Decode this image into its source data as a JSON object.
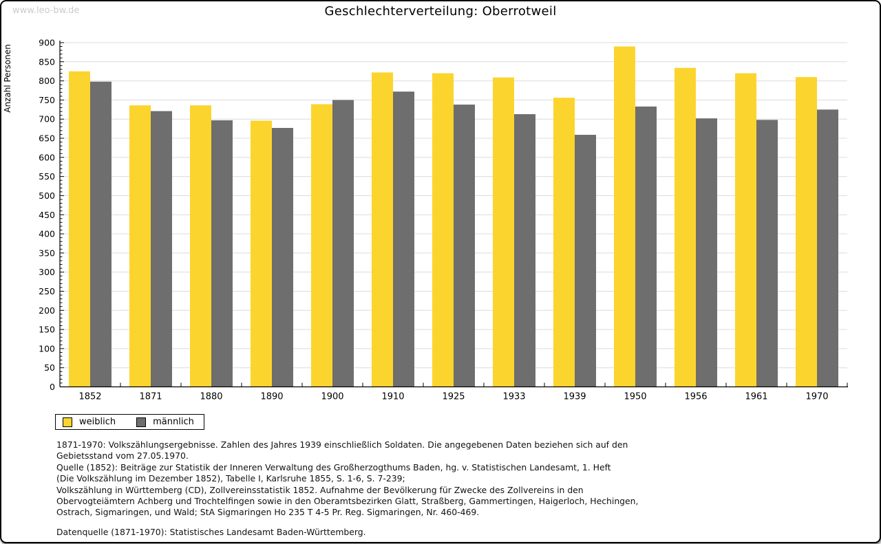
{
  "watermark": "www.leo-bw.de",
  "title": "Geschlechterverteilung: Oberrotweil",
  "colors": {
    "female": "#fcd42e",
    "male": "#6e6e6e",
    "grid": "#dcdcdc",
    "axis": "#000000",
    "watermark": "#cbcbcb"
  },
  "chart_data": {
    "type": "bar",
    "title": "Geschlechterverteilung: Oberrotweil",
    "xlabel": "",
    "ylabel": "Anzahl Personen",
    "ylim": [
      0,
      900
    ],
    "ytick_step": 50,
    "minor_tick_step": 10,
    "grid": true,
    "legend_position": "bottom-left",
    "categories": [
      "1852",
      "1871",
      "1880",
      "1890",
      "1900",
      "1910",
      "1925",
      "1933",
      "1939",
      "1950",
      "1956",
      "1961",
      "1970"
    ],
    "series": [
      {
        "name": "weiblich",
        "color": "#fcd42e",
        "values": [
          825,
          736,
          736,
          696,
          739,
          822,
          820,
          809,
          756,
          890,
          834,
          820,
          810
        ]
      },
      {
        "name": "männlich",
        "color": "#6e6e6e",
        "values": [
          798,
          721,
          697,
          677,
          750,
          772,
          738,
          713,
          659,
          733,
          702,
          698,
          725
        ]
      }
    ]
  },
  "footnotes": {
    "lines": [
      "1871-1970: Volkszählungsergebnisse. Zahlen des Jahres 1939 einschließlich Soldaten. Die angegebenen Daten beziehen sich auf den",
      "Gebietsstand vom 27.05.1970.",
      "Quelle (1852): Beiträge zur Statistik der Inneren Verwaltung des Großherzogthums Baden, hg. v. Statistischen Landesamt, 1. Heft",
      "(Die Volkszählung im Dezember 1852), Tabelle I, Karlsruhe 1855, S. 1-6, S. 7-239;",
      "Volkszählung in Württemberg (CD), Zollvereinsstatistik 1852. Aufnahme der Bevölkerung für Zwecke des Zollvereins in den",
      "Obervogteiämtern Achberg und Trochtelfingen sowie in den Oberamtsbezirken Glatt, Straßberg, Gammertingen, Haigerloch, Hechingen,",
      "Ostrach, Sigmaringen, und Wald; StA Sigmaringen Ho 235 T 4-5 Pr. Reg. Sigmaringen, Nr. 460-469."
    ],
    "datasource": "Datenquelle (1871-1970): Statistisches Landesamt Baden-Württemberg."
  }
}
